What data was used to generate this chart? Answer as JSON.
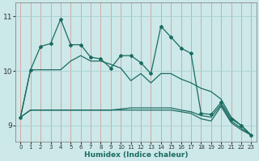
{
  "xlabel": "Humidex (Indice chaleur)",
  "xlim": [
    -0.5,
    23.5
  ],
  "ylim": [
    8.7,
    11.25
  ],
  "yticks": [
    9,
    10,
    11
  ],
  "xticks": [
    0,
    1,
    2,
    3,
    4,
    5,
    6,
    7,
    8,
    9,
    10,
    11,
    12,
    13,
    14,
    15,
    16,
    17,
    18,
    19,
    20,
    21,
    22,
    23
  ],
  "bg_color": "#cce8e8",
  "line_color": "#1a6b60",
  "grid_color": "#aacfcf",
  "line1_y": [
    9.15,
    10.02,
    10.45,
    10.5,
    10.95,
    10.48,
    10.48,
    10.25,
    10.22,
    10.05,
    10.28,
    10.28,
    10.15,
    9.95,
    10.82,
    10.62,
    10.42,
    10.32,
    9.22,
    9.2,
    9.42,
    9.12,
    9.0,
    8.82
  ],
  "line2_y": [
    9.15,
    10.02,
    10.02,
    10.02,
    10.02,
    10.18,
    10.28,
    10.18,
    10.18,
    10.12,
    10.05,
    9.82,
    9.95,
    9.78,
    9.95,
    9.95,
    9.85,
    9.78,
    9.68,
    9.62,
    9.48,
    9.15,
    9.0,
    8.82
  ],
  "line3_y": [
    9.15,
    9.28,
    9.28,
    9.28,
    9.28,
    9.28,
    9.28,
    9.28,
    9.28,
    9.28,
    9.3,
    9.32,
    9.32,
    9.32,
    9.32,
    9.32,
    9.28,
    9.25,
    9.18,
    9.15,
    9.38,
    9.08,
    8.95,
    8.82
  ],
  "line4_y": [
    9.15,
    9.28,
    9.28,
    9.28,
    9.28,
    9.28,
    9.28,
    9.28,
    9.28,
    9.28,
    9.28,
    9.28,
    9.28,
    9.28,
    9.28,
    9.28,
    9.25,
    9.22,
    9.12,
    9.08,
    9.35,
    9.05,
    8.92,
    8.82
  ]
}
